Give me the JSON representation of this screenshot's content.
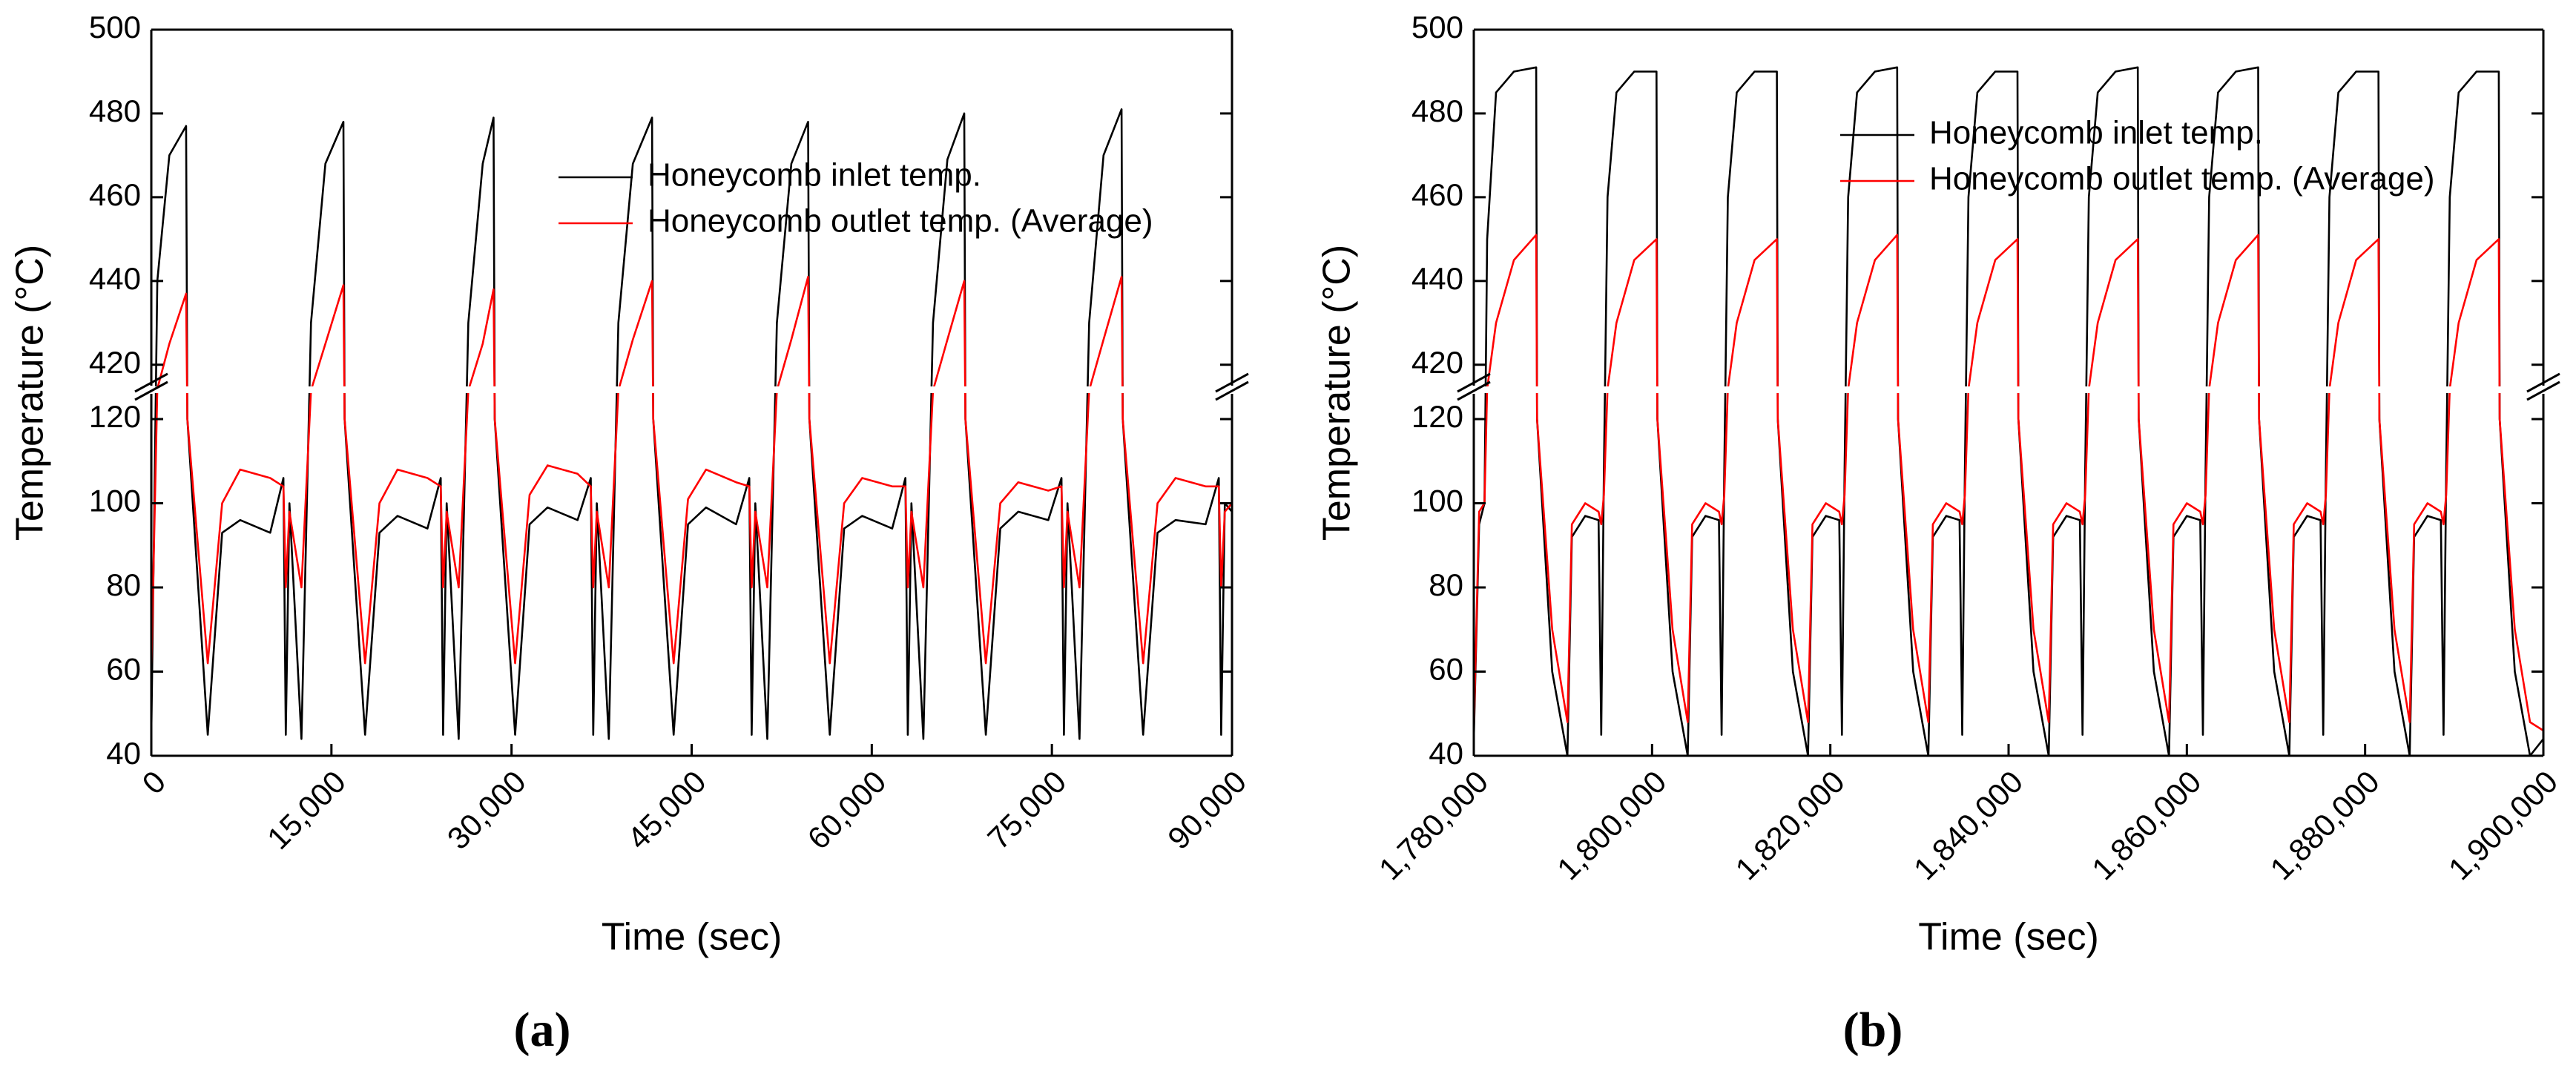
{
  "chart_data": [
    {
      "type": "line",
      "label": "(a)",
      "x_label": "Time (sec)",
      "y_label": "Temperature (°C)",
      "legend": "upper right",
      "xlim": [
        0,
        90000
      ],
      "xticks": [
        0,
        {
          "value": 15000,
          "label": "15,000"
        },
        {
          "value": 30000,
          "label": "30,000"
        },
        {
          "value": 45000,
          "label": "45,000"
        },
        {
          "value": 60000,
          "label": "60,000"
        },
        {
          "value": 75000,
          "label": "75,000"
        },
        {
          "value": 90000,
          "label": "90,000"
        }
      ],
      "ylim": [
        40,
        500
      ],
      "ybreak": [
        126,
        415
      ],
      "yticks": [
        40,
        60,
        80,
        100,
        120,
        420,
        440,
        460,
        480,
        500
      ],
      "x": [
        0,
        500,
        1500,
        2900,
        3000,
        4700,
        5900,
        7400,
        9900,
        11000,
        11200,
        11500,
        12500,
        13300,
        14500,
        16000,
        16100,
        17800,
        19000,
        20500,
        23000,
        24100,
        24300,
        24600,
        25600,
        26400,
        27600,
        28500,
        28600,
        30300,
        31500,
        33000,
        35500,
        36600,
        36800,
        37100,
        38100,
        38900,
        40100,
        41700,
        41800,
        43500,
        44700,
        46200,
        48700,
        49800,
        50000,
        50300,
        51300,
        52100,
        53300,
        54700,
        54800,
        56500,
        57700,
        59200,
        61700,
        62800,
        63000,
        63300,
        64300,
        65100,
        66300,
        67700,
        67800,
        69500,
        70700,
        72200,
        74700,
        75800,
        76000,
        76300,
        77300,
        78100,
        79300,
        80800,
        80900,
        82600,
        83800,
        85300,
        87800,
        88900,
        89100,
        89400,
        90000
      ],
      "series": [
        {
          "name": "Honeycomb inlet temp.",
          "color": "#000000",
          "values": [
            45,
            440,
            470,
            477,
            120,
            45,
            93,
            96,
            93,
            106,
            45,
            100,
            44,
            430,
            468,
            478,
            120,
            45,
            93,
            97,
            94,
            106,
            45,
            100,
            44,
            430,
            468,
            479,
            120,
            45,
            95,
            99,
            96,
            106,
            45,
            100,
            44,
            430,
            468,
            479,
            120,
            45,
            95,
            99,
            95,
            106,
            45,
            100,
            44,
            430,
            468,
            478,
            120,
            45,
            94,
            97,
            94,
            106,
            45,
            100,
            44,
            430,
            469,
            480,
            120,
            45,
            94,
            98,
            96,
            106,
            45,
            100,
            44,
            430,
            470,
            481,
            120,
            45,
            93,
            96,
            95,
            106,
            45,
            100,
            98
          ]
        },
        {
          "name": "Honeycomb outlet temp. (Average)",
          "color": "#ff0000",
          "values": [
            60,
            300,
            425,
            437,
            120,
            62,
            100,
            108,
            106,
            104,
            80,
            98,
            80,
            250,
            425,
            439,
            120,
            62,
            100,
            108,
            106,
            104,
            80,
            98,
            80,
            250,
            425,
            438,
            120,
            62,
            102,
            109,
            107,
            104,
            80,
            98,
            80,
            250,
            426,
            440,
            120,
            62,
            101,
            108,
            105,
            104,
            80,
            98,
            80,
            250,
            426,
            441,
            120,
            62,
            100,
            106,
            104,
            104,
            80,
            98,
            80,
            250,
            426,
            440,
            120,
            62,
            100,
            105,
            103,
            104,
            80,
            98,
            80,
            250,
            426,
            441,
            120,
            62,
            100,
            106,
            104,
            104,
            80,
            98,
            100
          ]
        }
      ]
    },
    {
      "type": "line",
      "label": "(b)",
      "x_label": "Time (sec)",
      "y_label": "Temperature (°C)",
      "legend": "upper right",
      "xlim": [
        1780000,
        1900000
      ],
      "xticks": [
        {
          "value": 1780000,
          "label": "1,780,000"
        },
        {
          "value": 1800000,
          "label": "1,800,000"
        },
        {
          "value": 1820000,
          "label": "1,820,000"
        },
        {
          "value": 1840000,
          "label": "1,840,000"
        },
        {
          "value": 1860000,
          "label": "1,860,000"
        },
        {
          "value": 1880000,
          "label": "1,880,000"
        },
        {
          "value": 1900000,
          "label": "1,900,000"
        }
      ],
      "ylim": [
        40,
        500
      ],
      "ybreak": [
        126,
        415
      ],
      "yticks": [
        40,
        60,
        80,
        100,
        120,
        420,
        440,
        460,
        480,
        500
      ],
      "x": [
        1780000,
        1780600,
        1781200,
        1781500,
        1782500,
        1784500,
        1787000,
        1787100,
        1788800,
        1790500,
        1791000,
        1792500,
        1794000,
        1794300,
        1794600,
        1795000,
        1796000,
        1798000,
        1800500,
        1800600,
        1802300,
        1804000,
        1804500,
        1806000,
        1807500,
        1807800,
        1808100,
        1808500,
        1809500,
        1811500,
        1814000,
        1814100,
        1815800,
        1817500,
        1818000,
        1819500,
        1821000,
        1821300,
        1821600,
        1822000,
        1823000,
        1825000,
        1827500,
        1827600,
        1829300,
        1831000,
        1831500,
        1833000,
        1834500,
        1834800,
        1835100,
        1835500,
        1836500,
        1838500,
        1841000,
        1841100,
        1842800,
        1844500,
        1845000,
        1846500,
        1848000,
        1848300,
        1848600,
        1849000,
        1850000,
        1852000,
        1854500,
        1854600,
        1856300,
        1858000,
        1858500,
        1860000,
        1861500,
        1861800,
        1862100,
        1862500,
        1863500,
        1865500,
        1868000,
        1868100,
        1869800,
        1871500,
        1872000,
        1873500,
        1875000,
        1875300,
        1875600,
        1876000,
        1877000,
        1879000,
        1881500,
        1881600,
        1883300,
        1885000,
        1885500,
        1887000,
        1888500,
        1888800,
        1889100,
        1889500,
        1890500,
        1892500,
        1895000,
        1895100,
        1896800,
        1898500,
        1900000
      ],
      "series": [
        {
          "name": "Honeycomb inlet temp.",
          "color": "#000000",
          "values": [
            44,
            95,
            100,
            450,
            485,
            490,
            491,
            120,
            60,
            40,
            92,
            97,
            96,
            45,
            108,
            460,
            485,
            490,
            490,
            120,
            60,
            40,
            92,
            97,
            96,
            45,
            108,
            460,
            485,
            490,
            490,
            120,
            60,
            40,
            92,
            97,
            96,
            45,
            108,
            460,
            485,
            490,
            491,
            120,
            60,
            40,
            92,
            97,
            96,
            45,
            108,
            460,
            485,
            490,
            490,
            120,
            60,
            40,
            92,
            97,
            96,
            45,
            108,
            460,
            485,
            490,
            491,
            120,
            60,
            40,
            92,
            97,
            96,
            45,
            108,
            460,
            485,
            490,
            491,
            120,
            60,
            40,
            92,
            97,
            96,
            45,
            108,
            460,
            485,
            490,
            490,
            120,
            60,
            40,
            92,
            97,
            96,
            45,
            108,
            460,
            485,
            490,
            490,
            120,
            60,
            40,
            44
          ]
        },
        {
          "name": "Honeycomb outlet temp. (Average)",
          "color": "#ff0000",
          "values": [
            46,
            98,
            100,
            300,
            430,
            445,
            451,
            120,
            70,
            48,
            95,
            100,
            98,
            95,
            102,
            300,
            430,
            445,
            450,
            120,
            70,
            48,
            95,
            100,
            98,
            95,
            102,
            300,
            430,
            445,
            450,
            120,
            70,
            48,
            95,
            100,
            98,
            95,
            102,
            300,
            430,
            445,
            451,
            120,
            70,
            48,
            95,
            100,
            98,
            95,
            102,
            300,
            430,
            445,
            450,
            120,
            70,
            48,
            95,
            100,
            98,
            95,
            102,
            300,
            430,
            445,
            450,
            120,
            70,
            48,
            95,
            100,
            98,
            95,
            102,
            300,
            430,
            445,
            451,
            120,
            70,
            48,
            95,
            100,
            98,
            95,
            102,
            300,
            430,
            445,
            450,
            120,
            70,
            48,
            95,
            100,
            98,
            95,
            102,
            300,
            430,
            445,
            450,
            120,
            70,
            48,
            46
          ]
        }
      ]
    }
  ]
}
